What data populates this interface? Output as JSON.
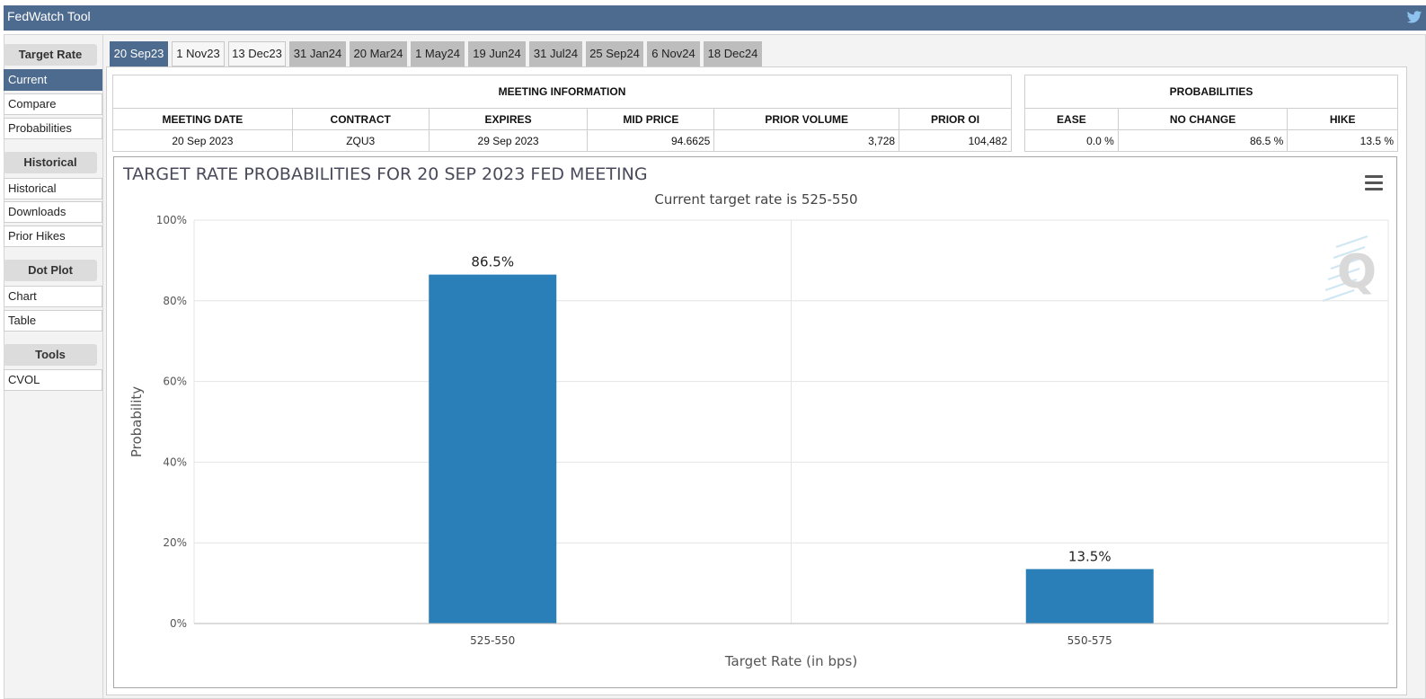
{
  "app": {
    "title": "FedWatch Tool",
    "twitter_icon": "twitter-icon"
  },
  "sidebar": {
    "groups": [
      {
        "heading": "Target Rate",
        "items": [
          "Current",
          "Compare",
          "Probabilities"
        ]
      },
      {
        "heading": "Historical",
        "items": [
          "Historical",
          "Downloads",
          "Prior Hikes"
        ]
      },
      {
        "heading": "Dot Plot",
        "items": [
          "Chart",
          "Table"
        ]
      },
      {
        "heading": "Tools",
        "items": [
          "CVOL"
        ]
      }
    ],
    "active_item": "Current"
  },
  "tabs": [
    "20 Sep23",
    "1 Nov23",
    "13 Dec23",
    "31 Jan24",
    "20 Mar24",
    "1 May24",
    "19 Jun24",
    "31 Jul24",
    "25 Sep24",
    "6 Nov24",
    "18 Dec24"
  ],
  "active_tab": "20 Sep23",
  "meeting_info": {
    "heading": "MEETING INFORMATION",
    "columns": [
      "MEETING DATE",
      "CONTRACT",
      "EXPIRES",
      "MID PRICE",
      "PRIOR VOLUME",
      "PRIOR OI"
    ],
    "row": [
      "20 Sep 2023",
      "ZQU3",
      "29 Sep 2023",
      "94.6625",
      "3,728",
      "104,482"
    ]
  },
  "probabilities": {
    "heading": "PROBABILITIES",
    "columns": [
      "EASE",
      "NO CHANGE",
      "HIKE"
    ],
    "row": [
      "0.0 %",
      "86.5 %",
      "13.5 %"
    ]
  },
  "chart_data": {
    "type": "bar",
    "title": "TARGET RATE PROBABILITIES FOR 20 SEP 2023 FED MEETING",
    "subtitle": "Current target rate is 525-550",
    "categories": [
      "525-550",
      "550-575"
    ],
    "values": [
      86.5,
      13.5
    ],
    "data_labels": [
      "86.5%",
      "13.5%"
    ],
    "xlabel": "Target Rate (in bps)",
    "ylabel": "Probability",
    "ylim": [
      0,
      100
    ],
    "yticks": [
      "0%",
      "20%",
      "40%",
      "60%",
      "80%",
      "100%"
    ],
    "grid": true,
    "bar_color": "#2b7fb8",
    "watermark": "Q",
    "menu_icon": "hamburger-menu-icon"
  }
}
